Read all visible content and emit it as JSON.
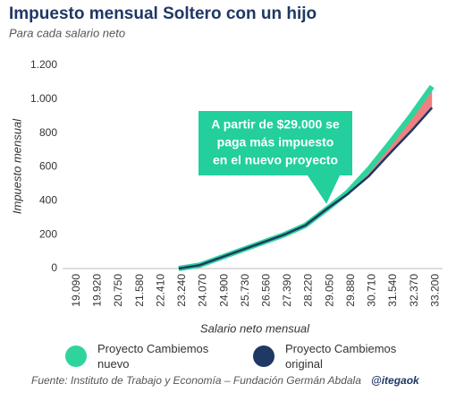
{
  "chart_data": {
    "type": "line",
    "title": "Impuesto mensual Soltero con un hijo",
    "subtitle": "Para cada salario neto",
    "x_label": "Salario  neto mensual",
    "y_label": "Impuesto mensual",
    "categories": [
      "19.090",
      "19.920",
      "20.750",
      "21.580",
      "22.410",
      "23.240",
      "24.070",
      "24.900",
      "25.730",
      "26.560",
      "27.390",
      "28.220",
      "29.050",
      "29.880",
      "30.710",
      "31.540",
      "32.370",
      "33.200"
    ],
    "series": [
      {
        "name": "Proyecto Cambiemos nuevo",
        "color": "#2fd49c",
        "values": [
          null,
          null,
          null,
          null,
          null,
          0,
          20,
          65,
          110,
          155,
          200,
          255,
          350,
          450,
          585,
          740,
          900,
          1075
        ]
      },
      {
        "name": "Proyecto Cambiemos original",
        "color": "#1f3864",
        "values": [
          null,
          null,
          null,
          null,
          null,
          0,
          20,
          65,
          110,
          155,
          200,
          255,
          350,
          440,
          545,
          680,
          810,
          950
        ]
      }
    ],
    "difference_color": "#f08080",
    "ylim": [
      0,
      1200
    ],
    "yticks": [
      0,
      200,
      400,
      600,
      800,
      {
        "value": 1000,
        "label": "1.000"
      },
      {
        "value": 1200,
        "label": "1.200"
      }
    ],
    "annotation": [
      "A partir de $29.000 se",
      "paga más impuesto",
      "en el nuevo proyecto"
    ],
    "annotation_color": "#22cf9d",
    "source": "Fuente: Instituto de Trabajo y Economía – Fundación Germán Abdala",
    "handle": "@itegaok"
  }
}
